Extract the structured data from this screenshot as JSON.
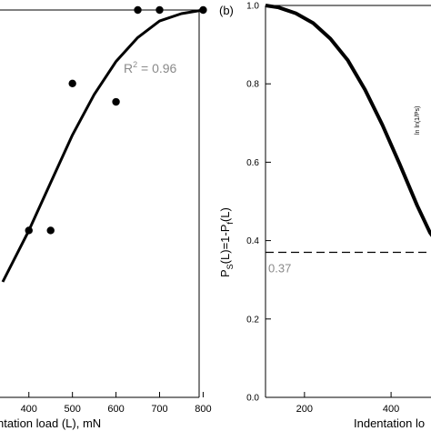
{
  "chart_data": [
    {
      "type": "scatter",
      "panel_label": "",
      "title": "",
      "xlabel": "Indentation load (L), mN",
      "xlabel_visible": "ntation load (L), mN",
      "ylabel": "",
      "xlim": [
        340,
        820
      ],
      "ylim": [
        0.25,
        1.0
      ],
      "xticks": [
        400,
        500,
        600,
        700,
        800
      ],
      "annotation": "R² = 0.96",
      "annotation_base": "R",
      "annotation_sup": "2",
      "annotation_rest": " = 0.96",
      "series": [
        {
          "kind": "points",
          "x": [
            400,
            450,
            500,
            600,
            650,
            700,
            800
          ],
          "y": [
            0.4,
            0.4,
            0.8,
            0.75,
            1.0,
            1.0,
            1.0
          ]
        },
        {
          "kind": "fit",
          "x": [
            340,
            400,
            450,
            500,
            550,
            600,
            650,
            700,
            750,
            800
          ],
          "y": [
            0.26,
            0.4,
            0.53,
            0.66,
            0.77,
            0.86,
            0.925,
            0.97,
            0.99,
            1.0
          ]
        }
      ]
    },
    {
      "type": "line",
      "panel_label": "(b)",
      "title": "",
      "xlabel": "Indentation load (L)",
      "xlabel_visible": "Indentation lo",
      "ylabel": "Ps(L)=1-Pf(L)",
      "ylabel_parts": [
        "P",
        "S",
        "(L)=1-P",
        "f",
        "(L)"
      ],
      "inset_ylabel": "ln ln(1/Ps)",
      "xlim": [
        110,
        530
      ],
      "ylim": [
        0.0,
        1.0
      ],
      "xticks": [
        200,
        400
      ],
      "yticks": [
        0.0,
        0.2,
        0.4,
        0.6,
        0.8,
        1.0
      ],
      "ytick_labels": [
        "0.0",
        "0.2",
        "0.4",
        "0.6",
        "0.8",
        "1.0"
      ],
      "reference_line": {
        "y": 0.37,
        "label": "0.37",
        "style": "dashed"
      },
      "series": [
        {
          "kind": "curve",
          "x": [
            110,
            140,
            180,
            220,
            260,
            300,
            340,
            380,
            420,
            460,
            490,
            520
          ],
          "y": [
            1.0,
            0.995,
            0.98,
            0.955,
            0.915,
            0.86,
            0.785,
            0.695,
            0.595,
            0.49,
            0.42,
            0.375
          ]
        }
      ]
    }
  ]
}
